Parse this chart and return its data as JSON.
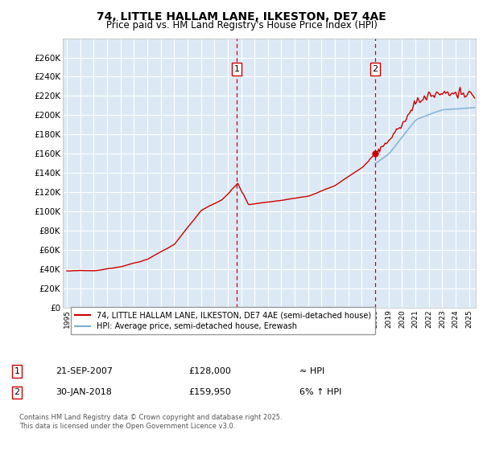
{
  "title": "74, LITTLE HALLAM LANE, ILKESTON, DE7 4AE",
  "subtitle": "Price paid vs. HM Land Registry's House Price Index (HPI)",
  "title_fontsize": 10,
  "subtitle_fontsize": 8.5,
  "background_color": "#ffffff",
  "plot_bg_color": "#dce9f5",
  "grid_color": "#ffffff",
  "legend_label_red": "74, LITTLE HALLAM LANE, ILKESTON, DE7 4AE (semi-detached house)",
  "legend_label_blue": "HPI: Average price, semi-detached house, Erewash",
  "marker1_date_idx": 152,
  "marker1_label": "1",
  "marker1_date_str": "21-SEP-2007",
  "marker1_price": 128000,
  "marker1_note": "≈ HPI",
  "marker2_date_idx": 276,
  "marker2_label": "2",
  "marker2_date_str": "30-JAN-2018",
  "marker2_price": 159950,
  "marker2_note": "6% ↑ HPI",
  "ylim": [
    0,
    280000
  ],
  "yticks": [
    0,
    20000,
    40000,
    60000,
    80000,
    100000,
    120000,
    140000,
    160000,
    180000,
    200000,
    220000,
    240000,
    260000
  ],
  "ytick_labels": [
    "£0",
    "£20K",
    "£40K",
    "£60K",
    "£80K",
    "£100K",
    "£120K",
    "£140K",
    "£160K",
    "£180K",
    "£200K",
    "£220K",
    "£240K",
    "£260K"
  ],
  "footer_line1": "Contains HM Land Registry data © Crown copyright and database right 2025.",
  "footer_line2": "This data is licensed under the Open Government Licence v3.0.",
  "red_color": "#cc0000",
  "blue_color": "#7aadd4"
}
